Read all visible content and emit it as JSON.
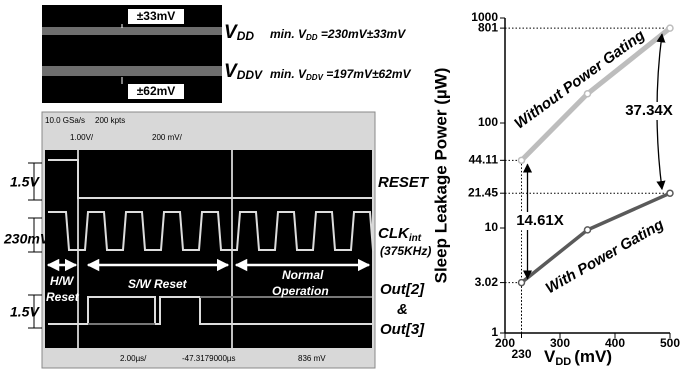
{
  "scope": {
    "top": {
      "ripple_vdd": "±33mV",
      "ripple_vddv": "±62mV",
      "vdd_label": {
        "main": "V",
        "sub": "DD"
      },
      "vdd_note": {
        "prefix": "min. V",
        "sub": "DD",
        "suffix": " =230mV±33mV"
      },
      "vddv_label": {
        "main": "V",
        "sub": "DDV"
      },
      "vddv_note": {
        "prefix": "min. V",
        "sub": "DDV",
        "suffix": " =197mV±62mV"
      }
    },
    "bottom": {
      "toolbar": [
        "10.0 GSa/s",
        "200 kpts",
        "1.00V/",
        "200 mV/",
        "2.00µs/",
        "-47.3179000µs",
        "836 mV"
      ],
      "scales": [
        "1.5V",
        "230mV",
        "1.5V"
      ],
      "reset": "RESET",
      "clk": {
        "main": "CLK",
        "sub": "int",
        "note": "(375KHz)"
      },
      "out": [
        "Out[2]",
        "&",
        "Out[3]"
      ],
      "phases": [
        [
          "H/W",
          "Reset"
        ],
        [
          "S/W Reset"
        ],
        [
          "Normal",
          "Operation"
        ]
      ]
    }
  },
  "chart_data": {
    "type": "line",
    "y_label": "Sleep Leakage Power (µW)",
    "x_label": {
      "main": "V",
      "sub": "DD",
      "unit": "(mV)"
    },
    "x": [
      230,
      350,
      500
    ],
    "series": [
      {
        "name": "Without Power Gating",
        "color": "#bdbdbd",
        "values": [
          44.11,
          190,
          801
        ]
      },
      {
        "name": "With Power Gating",
        "color": "#5a5a5a",
        "values": [
          3.02,
          9.6,
          21.45
        ]
      }
    ],
    "xlim": [
      200,
      500
    ],
    "xticks": [
      200,
      230,
      300,
      400,
      500
    ],
    "ylim": [
      1,
      1000
    ],
    "yticks": [
      1,
      3.02,
      10,
      21.45,
      44.11,
      100,
      801,
      1000
    ],
    "log_y": true,
    "annotations": [
      "37.34X",
      "14.61X"
    ]
  }
}
